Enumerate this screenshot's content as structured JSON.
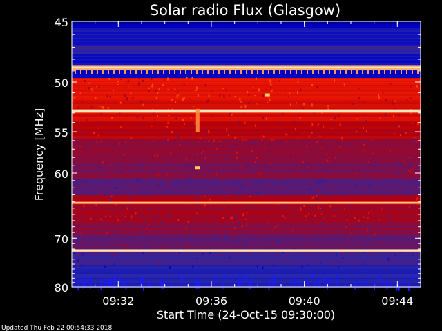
{
  "chart_data": {
    "type": "heatmap",
    "title": "Solar radio Flux (Glasgow)",
    "xlabel": "Start Time (24-Oct-15 09:30:00)",
    "ylabel": "Frequency [MHz]",
    "x_tick_labels": [
      "09:32",
      "09:36",
      "09:40",
      "09:44"
    ],
    "x_tick_values_min": [
      2,
      6,
      10,
      14
    ],
    "xlim_min": [
      0,
      15
    ],
    "y_tick_labels": [
      "45",
      "50",
      "55",
      "60",
      "70",
      "80"
    ],
    "y_tick_values": [
      45,
      50,
      55,
      60,
      70,
      80
    ],
    "ylim": [
      45,
      80
    ],
    "y_scale": "reciprocal (plasma-frequency style)",
    "colormap": [
      "#000060",
      "#0000c8",
      "#2828a8",
      "#6a1460",
      "#b4000a",
      "#ff1e00",
      "#ff6a20",
      "#ffd8a0"
    ],
    "bright_bands_mhz": [
      48.7,
      52.8,
      64.2,
      72.3
    ],
    "events": [
      {
        "freq_mhz": 53.0,
        "time_min": 5.4,
        "note": "brief vertical enhancement"
      },
      {
        "freq_mhz": 59.3,
        "time_min": 5.4,
        "note": "short bright burst"
      },
      {
        "freq_mhz": 51.2,
        "time_min": 8.4,
        "note": "small spike"
      }
    ]
  },
  "footer": {
    "updated": "Updated Thu Feb 22 00:54:33 2018"
  }
}
